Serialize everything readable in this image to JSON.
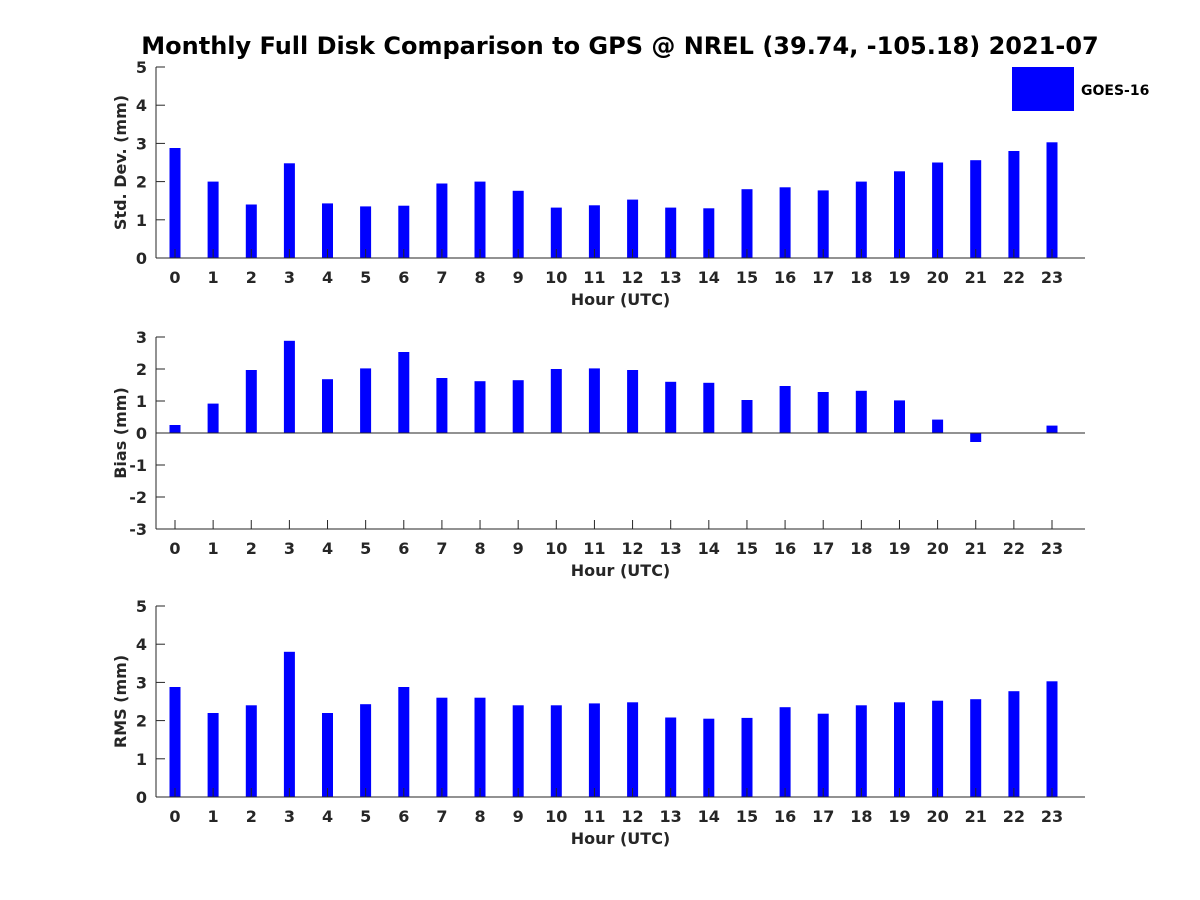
{
  "title": "Monthly Full Disk Comparison to GPS @ NREL (39.74, -105.18) 2021-07",
  "legend": {
    "label": "GOES-16",
    "color": "#0000ff",
    "placement": "top-right"
  },
  "colors": {
    "bar": "#0000ff",
    "axis": "#262626"
  },
  "chart_data": [
    {
      "type": "bar",
      "xlabel": "Hour (UTC)",
      "ylabel": "Std. Dev. (mm)",
      "ylim": [
        0,
        5
      ],
      "yticks": [
        0,
        1,
        2,
        3,
        4,
        5
      ],
      "categories": [
        "0",
        "1",
        "2",
        "3",
        "4",
        "5",
        "6",
        "7",
        "8",
        "9",
        "10",
        "11",
        "12",
        "13",
        "14",
        "15",
        "16",
        "17",
        "18",
        "19",
        "20",
        "21",
        "22",
        "23"
      ],
      "series": [
        {
          "name": "GOES-16",
          "values": [
            2.88,
            2.0,
            1.4,
            2.48,
            1.43,
            1.35,
            1.37,
            1.95,
            2.0,
            1.76,
            1.32,
            1.38,
            1.53,
            1.32,
            1.3,
            1.8,
            1.85,
            1.77,
            2.0,
            2.27,
            2.5,
            2.56,
            2.8,
            3.03
          ]
        }
      ],
      "grid": false
    },
    {
      "type": "bar",
      "xlabel": "Hour (UTC)",
      "ylabel": "Bias (mm)",
      "ylim": [
        -3,
        3
      ],
      "yticks": [
        -3,
        -2,
        -1,
        0,
        1,
        2,
        3
      ],
      "categories": [
        "0",
        "1",
        "2",
        "3",
        "4",
        "5",
        "6",
        "7",
        "8",
        "9",
        "10",
        "11",
        "12",
        "13",
        "14",
        "15",
        "16",
        "17",
        "18",
        "19",
        "20",
        "21",
        "22",
        "23"
      ],
      "series": [
        {
          "name": "GOES-16",
          "values": [
            0.25,
            0.92,
            1.97,
            2.88,
            1.68,
            2.02,
            2.53,
            1.72,
            1.62,
            1.65,
            2.0,
            2.02,
            1.97,
            1.6,
            1.57,
            1.03,
            1.47,
            1.28,
            1.32,
            1.02,
            0.42,
            -0.28,
            0.0,
            0.23
          ]
        }
      ],
      "grid": false
    },
    {
      "type": "bar",
      "xlabel": "Hour (UTC)",
      "ylabel": "RMS (mm)",
      "ylim": [
        0,
        5
      ],
      "yticks": [
        0,
        1,
        2,
        3,
        4,
        5
      ],
      "categories": [
        "0",
        "1",
        "2",
        "3",
        "4",
        "5",
        "6",
        "7",
        "8",
        "9",
        "10",
        "11",
        "12",
        "13",
        "14",
        "15",
        "16",
        "17",
        "18",
        "19",
        "20",
        "21",
        "22",
        "23"
      ],
      "series": [
        {
          "name": "GOES-16",
          "values": [
            2.88,
            2.2,
            2.4,
            3.8,
            2.2,
            2.43,
            2.88,
            2.6,
            2.6,
            2.4,
            2.4,
            2.45,
            2.48,
            2.08,
            2.05,
            2.07,
            2.35,
            2.18,
            2.4,
            2.48,
            2.52,
            2.56,
            2.77,
            3.03
          ]
        }
      ],
      "grid": false
    }
  ]
}
